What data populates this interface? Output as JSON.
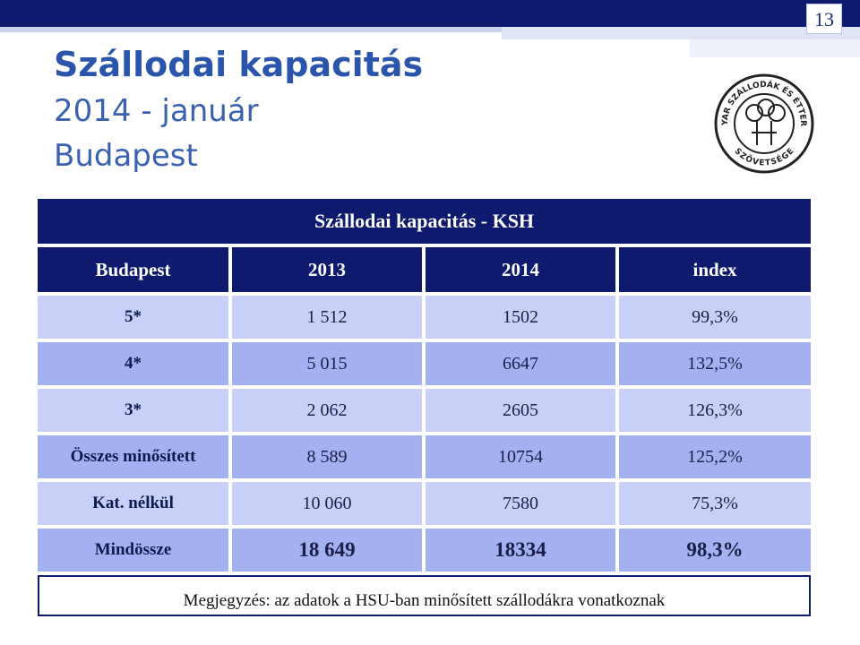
{
  "page_number": "13",
  "header": {
    "title": "Szállodai kapacitás",
    "subtitle": "2014 - január",
    "city": "Budapest"
  },
  "logo": {
    "top_text": "MAGYAR SZÁLLODÁK ÉS ÉTTERMEK",
    "bottom_text": "SZÖVETSÉGE"
  },
  "table": {
    "title": "Szállodai kapacitás - KSH",
    "header": [
      "Budapest",
      "2013",
      "2014",
      "index"
    ],
    "rows": [
      [
        "5*",
        "1 512",
        "1502",
        "99,3%"
      ],
      [
        "4*",
        "5 015",
        "6647",
        "132,5%"
      ],
      [
        "3*",
        "2 062",
        "2605",
        "126,3%"
      ],
      [
        "Összes minősített",
        "8 589",
        "10754",
        "125,2%"
      ],
      [
        "Kat. nélkül",
        "10 060",
        "7580",
        "75,3%"
      ],
      [
        "Mindössze",
        "18 649",
        "18334",
        "98,3%"
      ]
    ],
    "note": "Megjegyzés: az adatok a HSU-ban minősített szállodákra vonatkoznak"
  }
}
